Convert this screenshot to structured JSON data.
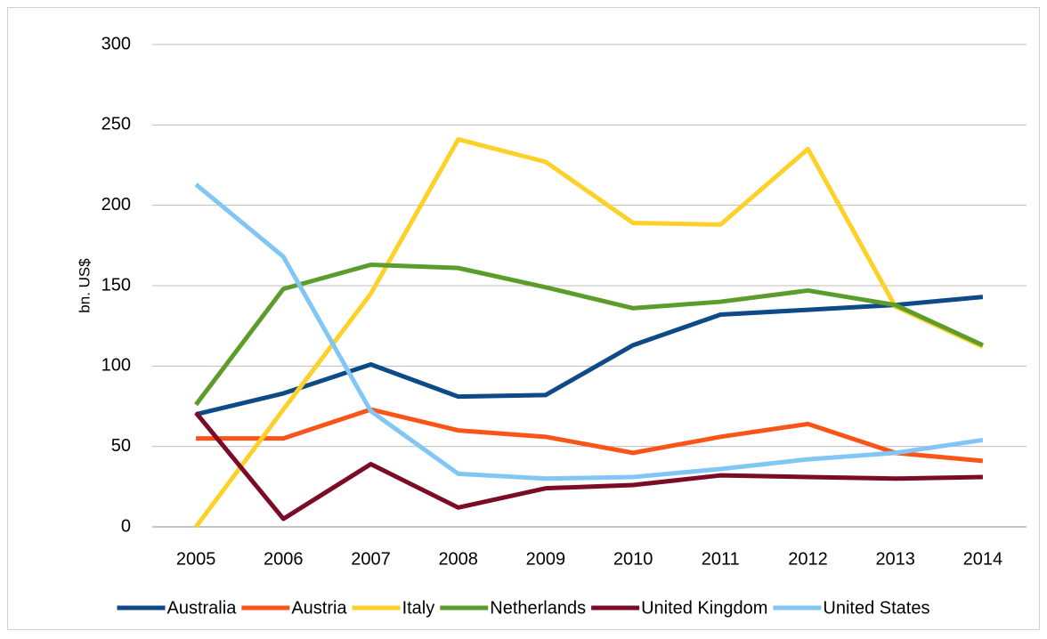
{
  "chart_data": {
    "type": "line",
    "y_label": "bn. US$",
    "categories": [
      "2005",
      "2006",
      "2007",
      "2008",
      "2009",
      "2010",
      "2011",
      "2012",
      "2013",
      "2014"
    ],
    "series": [
      {
        "name": "Australia",
        "color": "#0d4a87",
        "values": [
          70,
          83,
          101,
          81,
          82,
          113,
          132,
          135,
          138,
          143
        ]
      },
      {
        "name": "Austria",
        "color": "#fb5418",
        "values": [
          55,
          55,
          73,
          60,
          56,
          46,
          56,
          64,
          46,
          41
        ]
      },
      {
        "name": "Italy",
        "color": "#fdd128",
        "values": [
          0,
          73,
          145,
          241,
          227,
          189,
          188,
          235,
          137,
          112
        ]
      },
      {
        "name": "Netherlands",
        "color": "#5b9c2b",
        "values": [
          76,
          148,
          163,
          161,
          149,
          136,
          140,
          147,
          138,
          113
        ]
      },
      {
        "name": "United Kingdom",
        "color": "#7b0b26",
        "values": [
          71,
          5,
          39,
          12,
          24,
          26,
          32,
          31,
          30,
          31
        ]
      },
      {
        "name": "United States",
        "color": "#82c6f6",
        "values": [
          213,
          168,
          72,
          33,
          30,
          31,
          36,
          42,
          46,
          54
        ]
      }
    ],
    "ylim": [
      0,
      300
    ],
    "yticks": [
      0,
      50,
      100,
      150,
      200,
      250,
      300
    ],
    "grid": true,
    "legend": "bottom"
  }
}
